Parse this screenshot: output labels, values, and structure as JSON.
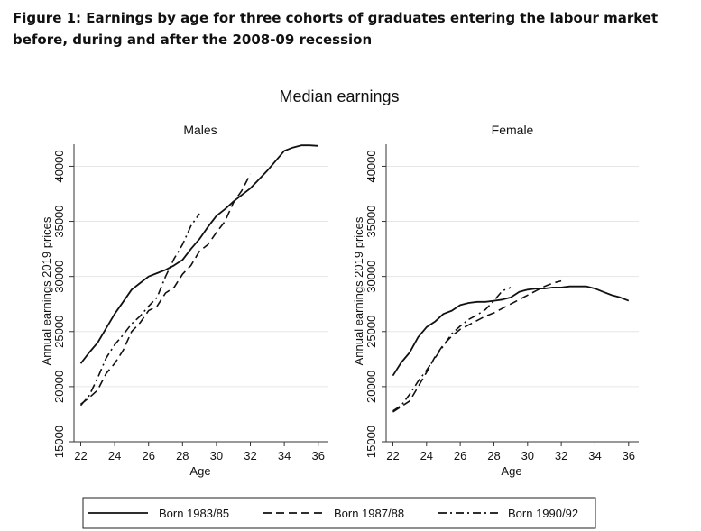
{
  "caption": "Figure 1: Earnings by age for three cohorts of graduates entering the labour market before, during and after the 2008-09 recession",
  "figure_title": "Median earnings",
  "chart_data": [
    {
      "type": "line",
      "title": "Males",
      "xlabel": "Age",
      "ylabel": "Annual earnings 2019 prices",
      "xlim": [
        21.6,
        36.6
      ],
      "ylim": [
        15000,
        42000
      ],
      "xticks": [
        22,
        24,
        26,
        28,
        30,
        32,
        34,
        36
      ],
      "yticks": [
        15000,
        20000,
        25000,
        30000,
        35000,
        40000
      ],
      "grid": true,
      "series": [
        {
          "name": "Born 1983/85",
          "style": "solid",
          "points": [
            [
              22,
              22100
            ],
            [
              22.5,
              23100
            ],
            [
              23,
              24000
            ],
            [
              23.5,
              25300
            ],
            [
              24,
              26600
            ],
            [
              24.5,
              27700
            ],
            [
              25,
              28800
            ],
            [
              25.5,
              29400
            ],
            [
              26,
              30000
            ],
            [
              26.5,
              30300
            ],
            [
              27,
              30600
            ],
            [
              27.5,
              31000
            ],
            [
              28,
              31500
            ],
            [
              28.5,
              32500
            ],
            [
              29,
              33400
            ],
            [
              29.5,
              34500
            ],
            [
              30,
              35500
            ],
            [
              30.5,
              36100
            ],
            [
              31,
              36800
            ],
            [
              31.5,
              37400
            ],
            [
              32,
              38000
            ],
            [
              32.5,
              38800
            ],
            [
              33,
              39600
            ],
            [
              33.5,
              40500
            ],
            [
              34,
              41400
            ],
            [
              34.5,
              41700
            ],
            [
              35,
              41900
            ],
            [
              35.5,
              41900
            ],
            [
              36,
              41850
            ]
          ]
        },
        {
          "name": "Born 1987/88",
          "style": "dashed",
          "points": [
            [
              22,
              18400
            ],
            [
              22.5,
              19000
            ],
            [
              23,
              19700
            ],
            [
              23.5,
              21200
            ],
            [
              24,
              22100
            ],
            [
              24.5,
              23300
            ],
            [
              25,
              25000
            ],
            [
              25.5,
              25800
            ],
            [
              26,
              26900
            ],
            [
              26.5,
              27300
            ],
            [
              27,
              28500
            ],
            [
              27.5,
              29000
            ],
            [
              28,
              30200
            ],
            [
              28.5,
              31000
            ],
            [
              29,
              32300
            ],
            [
              29.5,
              32900
            ],
            [
              30,
              34000
            ],
            [
              30.5,
              35000
            ],
            [
              31,
              36700
            ],
            [
              31.5,
              37800
            ],
            [
              32,
              39300
            ]
          ]
        },
        {
          "name": "Born 1990/92",
          "style": "dashdot",
          "points": [
            [
              22,
              18300
            ],
            [
              22.5,
              19200
            ],
            [
              23,
              20800
            ],
            [
              23.5,
              22600
            ],
            [
              24,
              23800
            ],
            [
              24.5,
              24700
            ],
            [
              25,
              25700
            ],
            [
              25.5,
              26400
            ],
            [
              26,
              27300
            ],
            [
              26.5,
              28100
            ],
            [
              27,
              30000
            ],
            [
              27.5,
              31600
            ],
            [
              28,
              32900
            ],
            [
              28.5,
              34600
            ],
            [
              29,
              35700
            ]
          ]
        }
      ]
    },
    {
      "type": "line",
      "title": "Female",
      "xlabel": "Age",
      "ylabel": "Annual earnings 2019 prices",
      "xlim": [
        21.6,
        36.6
      ],
      "ylim": [
        15000,
        42000
      ],
      "xticks": [
        22,
        24,
        26,
        28,
        30,
        32,
        34,
        36
      ],
      "yticks": [
        15000,
        20000,
        25000,
        30000,
        35000,
        40000
      ],
      "grid": true,
      "series": [
        {
          "name": "Born 1983/85",
          "style": "solid",
          "points": [
            [
              22,
              21000
            ],
            [
              22.5,
              22200
            ],
            [
              23,
              23100
            ],
            [
              23.5,
              24500
            ],
            [
              24,
              25400
            ],
            [
              24.5,
              25900
            ],
            [
              25,
              26600
            ],
            [
              25.5,
              26900
            ],
            [
              26,
              27400
            ],
            [
              26.5,
              27600
            ],
            [
              27,
              27700
            ],
            [
              27.5,
              27700
            ],
            [
              28,
              27800
            ],
            [
              28.5,
              27900
            ],
            [
              29,
              28100
            ],
            [
              29.5,
              28600
            ],
            [
              30,
              28800
            ],
            [
              30.5,
              28900
            ],
            [
              31,
              28900
            ],
            [
              31.5,
              29000
            ],
            [
              32,
              29000
            ],
            [
              32.5,
              29100
            ],
            [
              33,
              29100
            ],
            [
              33.5,
              29100
            ],
            [
              34,
              28900
            ],
            [
              34.5,
              28600
            ],
            [
              35,
              28300
            ],
            [
              35.5,
              28100
            ],
            [
              36,
              27800
            ]
          ]
        },
        {
          "name": "Born 1987/88",
          "style": "dashed",
          "points": [
            [
              22,
              17700
            ],
            [
              22.5,
              18200
            ],
            [
              23,
              18700
            ],
            [
              23.5,
              20000
            ],
            [
              24,
              21300
            ],
            [
              24.5,
              22700
            ],
            [
              25,
              23800
            ],
            [
              25.5,
              24600
            ],
            [
              26,
              25200
            ],
            [
              26.5,
              25600
            ],
            [
              27,
              26000
            ],
            [
              27.5,
              26400
            ],
            [
              28,
              26700
            ],
            [
              28.5,
              27100
            ],
            [
              29,
              27500
            ],
            [
              29.5,
              27900
            ],
            [
              30,
              28300
            ],
            [
              30.5,
              28700
            ],
            [
              31,
              29100
            ],
            [
              31.5,
              29400
            ],
            [
              32,
              29600
            ]
          ]
        },
        {
          "name": "Born 1990/92",
          "style": "dashdot",
          "points": [
            [
              22,
              17800
            ],
            [
              22.5,
              18300
            ],
            [
              23,
              19300
            ],
            [
              23.5,
              20500
            ],
            [
              24,
              21500
            ],
            [
              24.5,
              22600
            ],
            [
              25,
              23700
            ],
            [
              25.5,
              24800
            ],
            [
              26,
              25500
            ],
            [
              26.5,
              26100
            ],
            [
              27,
              26500
            ],
            [
              27.5,
              27000
            ],
            [
              28,
              27800
            ],
            [
              28.5,
              28700
            ],
            [
              29,
              29000
            ]
          ]
        }
      ]
    }
  ],
  "legend": {
    "placement": "bottom",
    "items": [
      {
        "label": "Born 1983/85",
        "style": "solid"
      },
      {
        "label": "Born 1987/88",
        "style": "dashed"
      },
      {
        "label": "Born 1990/92",
        "style": "dashdot"
      }
    ]
  },
  "colors": {
    "line": "#111111",
    "grid": "#e6e6e6",
    "axis": "#333333"
  }
}
